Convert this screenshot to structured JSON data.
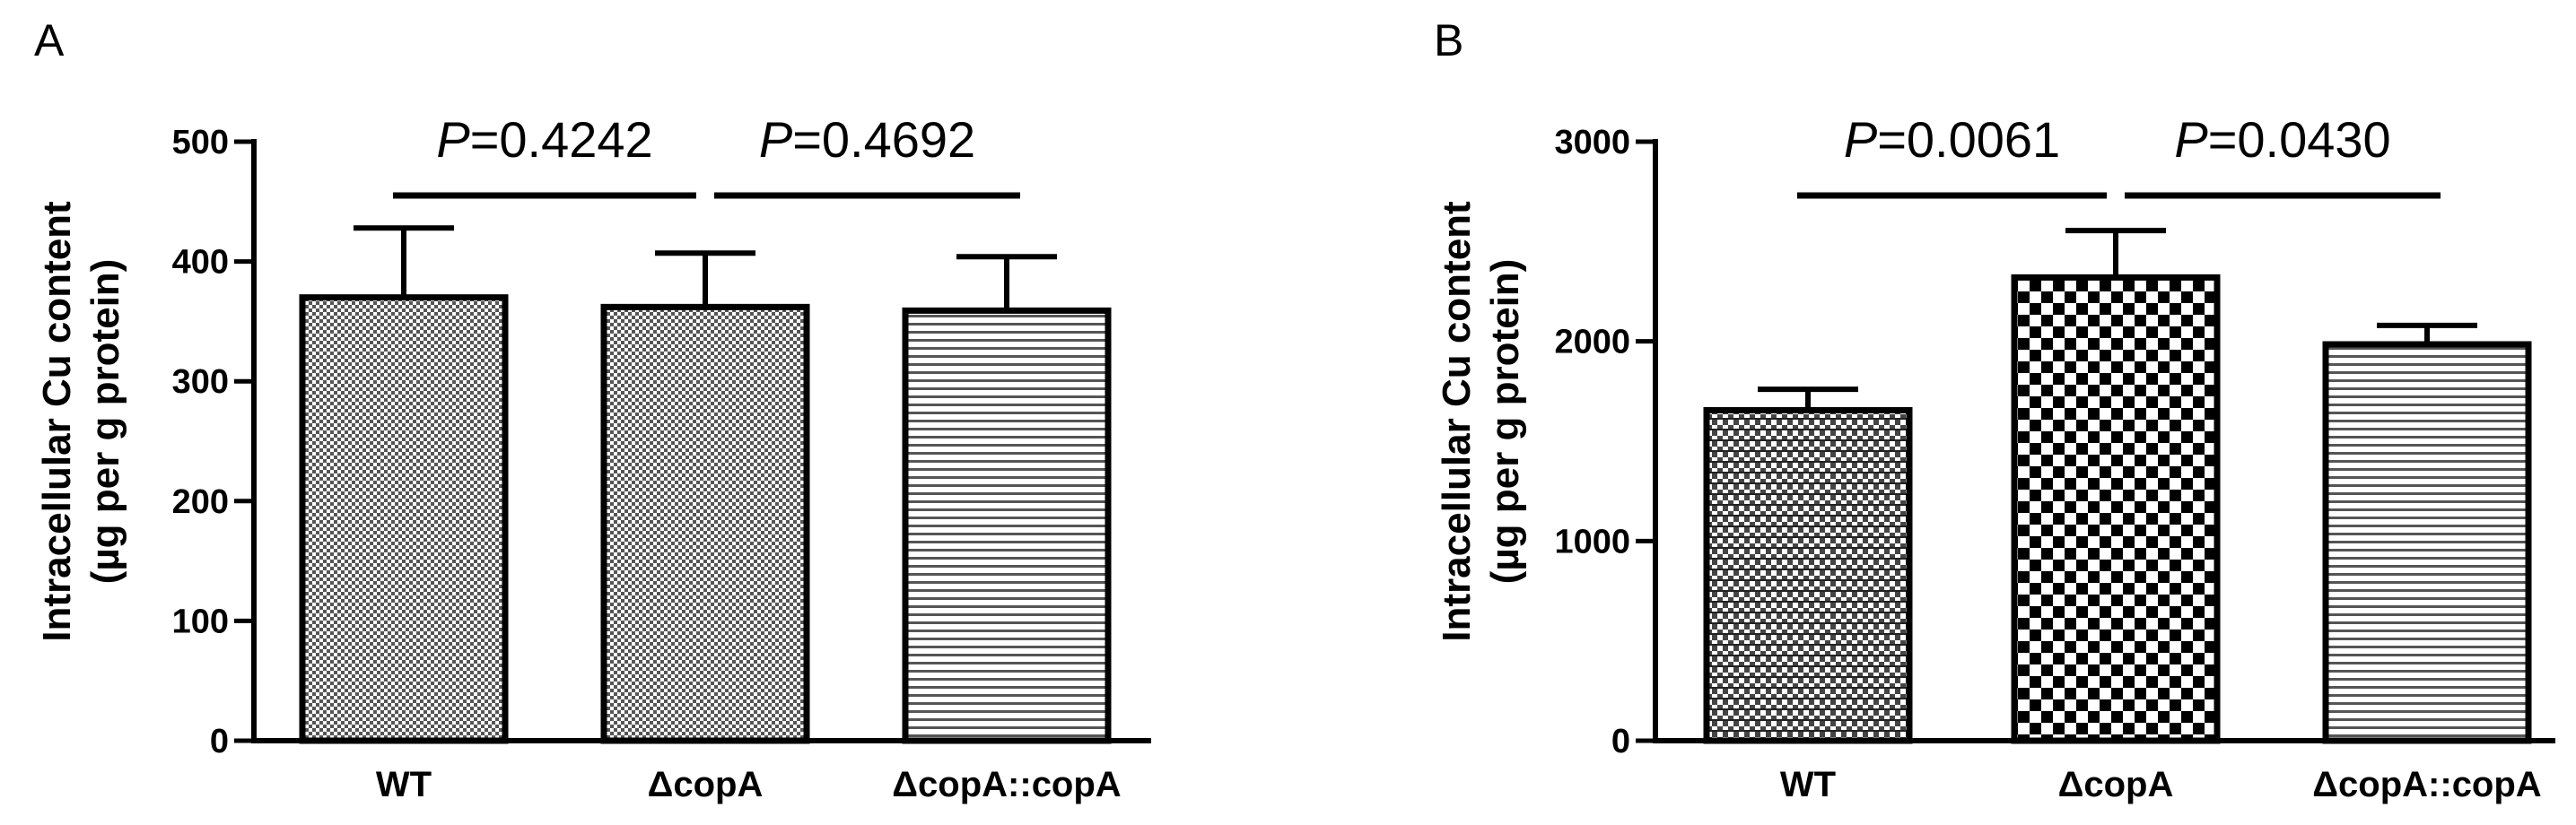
{
  "chart_data": [
    {
      "type": "bar",
      "panel": "A",
      "categories": [
        "WT",
        "ΔcopA",
        "ΔcopA::copA"
      ],
      "values": [
        370,
        362,
        359
      ],
      "errors": [
        58,
        45,
        45
      ],
      "ylabel_line1": "Intracellular Cu content",
      "ylabel_line2": "(µg per g protein)",
      "ylim": [
        0,
        500
      ],
      "yticks": [
        0,
        100,
        200,
        300,
        400,
        500
      ],
      "patterns": [
        "dense-dots",
        "dense-dots",
        "horizontal-lines"
      ],
      "comparisons": [
        {
          "from": 0,
          "to": 1,
          "p_label": "P",
          "p_value": "=0.4242"
        },
        {
          "from": 1,
          "to": 2,
          "p_label": "P",
          "p_value": "=0.4692"
        }
      ]
    },
    {
      "type": "bar",
      "panel": "B",
      "categories": [
        "WT",
        "ΔcopA",
        "ΔcopA::copA"
      ],
      "values": [
        1655,
        2320,
        1985
      ],
      "errors": [
        105,
        235,
        95
      ],
      "ylabel_line1": "Intracellular Cu content",
      "ylabel_line2": "(µg per g protein)",
      "ylim": [
        0,
        3000
      ],
      "yticks": [
        0,
        1000,
        2000,
        3000
      ],
      "patterns": [
        "fine-checker-lines",
        "checkerboard",
        "horizontal-lines"
      ],
      "comparisons": [
        {
          "from": 0,
          "to": 1,
          "p_label": "P",
          "p_value": "=0.0061"
        },
        {
          "from": 1,
          "to": 2,
          "p_label": "P",
          "p_value": "=0.0430"
        }
      ]
    }
  ]
}
